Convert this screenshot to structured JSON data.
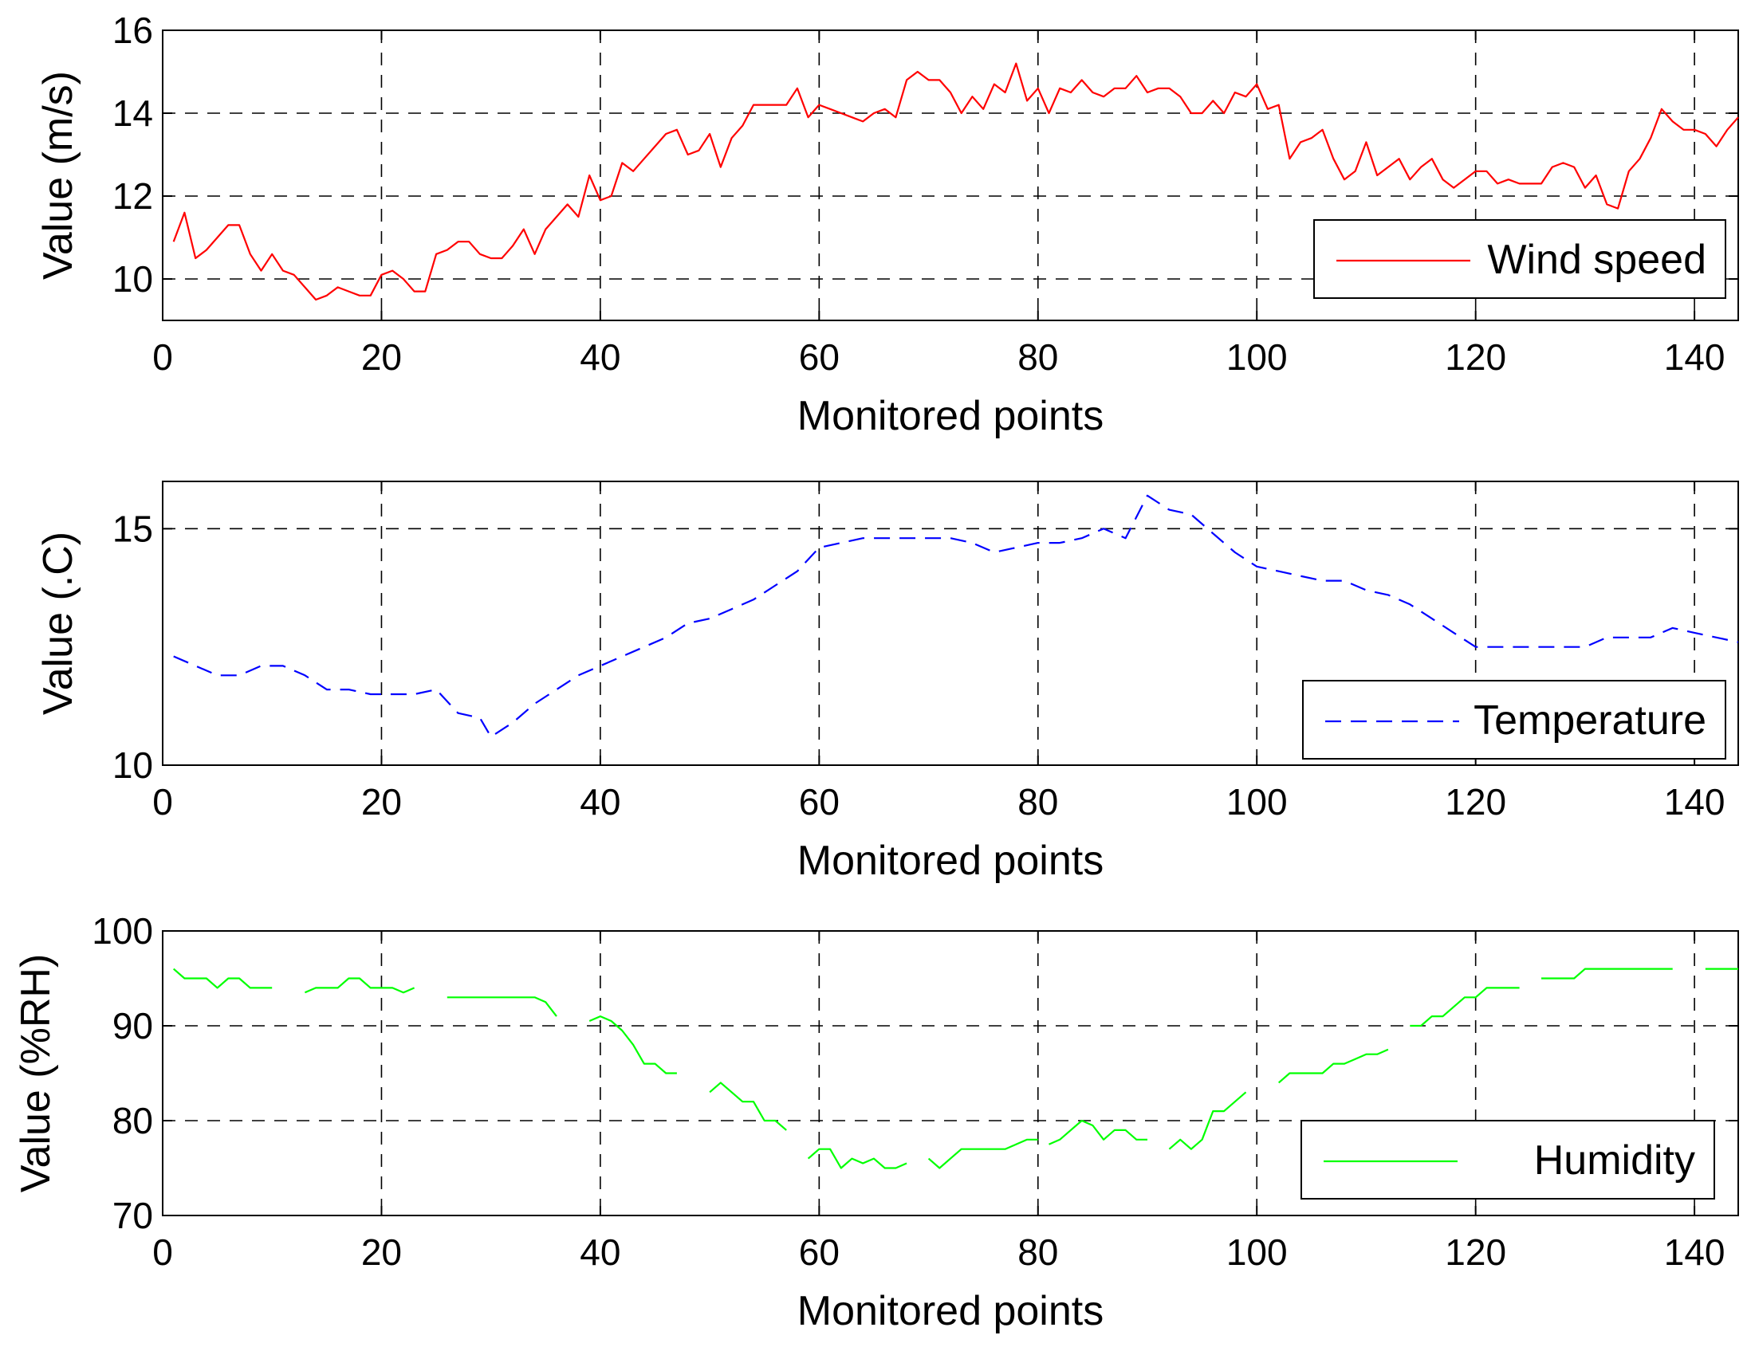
{
  "chart_data": [
    {
      "type": "line",
      "xlabel": "Monitored points",
      "ylabel": "Value (m/s)",
      "xlim": [
        0,
        144
      ],
      "ylim": [
        9,
        16
      ],
      "xticks": [
        0,
        20,
        40,
        60,
        80,
        100,
        120,
        140
      ],
      "yticks": [
        10,
        12,
        14,
        16
      ],
      "grid": true,
      "legend": "right",
      "series": [
        {
          "name": "Wind speed",
          "color": "#ff0000",
          "style": "solid",
          "x": [
            1,
            2,
            3,
            4,
            5,
            6,
            7,
            8,
            9,
            10,
            11,
            12,
            13,
            14,
            15,
            16,
            17,
            18,
            19,
            20,
            21,
            22,
            23,
            24,
            25,
            26,
            27,
            28,
            29,
            30,
            31,
            32,
            33,
            34,
            35,
            36,
            37,
            38,
            39,
            40,
            41,
            42,
            43,
            44,
            45,
            46,
            47,
            48,
            49,
            50,
            51,
            52,
            53,
            54,
            55,
            56,
            57,
            58,
            59,
            60,
            61,
            62,
            63,
            64,
            65,
            66,
            67,
            68,
            69,
            70,
            71,
            72,
            73,
            74,
            75,
            76,
            77,
            78,
            79,
            80,
            81,
            82,
            83,
            84,
            85,
            86,
            87,
            88,
            89,
            90,
            91,
            92,
            93,
            94,
            95,
            96,
            97,
            98,
            99,
            100,
            101,
            102,
            103,
            104,
            105,
            106,
            107,
            108,
            109,
            110,
            111,
            112,
            113,
            114,
            115,
            116,
            117,
            118,
            119,
            120,
            121,
            122,
            123,
            124,
            125,
            126,
            127,
            128,
            129,
            130,
            131,
            132,
            133,
            134,
            135,
            136,
            137,
            138,
            139,
            140,
            141,
            142,
            143,
            144
          ],
          "y": [
            10.9,
            11.6,
            10.5,
            10.7,
            11.0,
            11.3,
            11.3,
            10.6,
            10.2,
            10.6,
            10.2,
            10.1,
            9.8,
            9.5,
            9.6,
            9.8,
            9.7,
            9.6,
            9.6,
            10.1,
            10.2,
            10.0,
            9.7,
            9.7,
            10.6,
            10.7,
            10.9,
            10.9,
            10.6,
            10.5,
            10.5,
            10.8,
            11.2,
            10.6,
            11.2,
            11.5,
            11.8,
            11.5,
            12.5,
            11.9,
            12.0,
            12.8,
            12.6,
            12.9,
            13.2,
            13.5,
            13.6,
            13.0,
            13.1,
            13.5,
            12.7,
            13.4,
            13.7,
            14.2,
            14.2,
            14.2,
            14.2,
            14.6,
            13.9,
            14.2,
            14.1,
            14.0,
            13.9,
            13.8,
            14.0,
            14.1,
            13.9,
            14.8,
            15.0,
            14.8,
            14.8,
            14.5,
            14.0,
            14.4,
            14.1,
            14.7,
            14.5,
            15.2,
            14.3,
            14.6,
            14.0,
            14.6,
            14.5,
            14.8,
            14.5,
            14.4,
            14.6,
            14.6,
            14.9,
            14.5,
            14.6,
            14.6,
            14.4,
            14.0,
            14.0,
            14.3,
            14.0,
            14.5,
            14.4,
            14.7,
            14.1,
            14.2,
            12.9,
            13.3,
            13.4,
            13.6,
            12.9,
            12.4,
            12.6,
            13.3,
            12.5,
            12.7,
            12.9,
            12.4,
            12.7,
            12.9,
            12.4,
            12.2,
            12.4,
            12.6,
            12.6,
            12.3,
            12.4,
            12.3,
            12.3,
            12.3,
            12.7,
            12.8,
            12.7,
            12.2,
            12.5,
            11.8,
            11.7,
            12.6,
            12.9,
            13.4,
            14.1,
            13.8,
            13.6,
            13.6,
            13.5,
            13.2,
            13.6,
            13.9
          ]
        }
      ]
    },
    {
      "type": "line",
      "xlabel": "Monitored points",
      "ylabel": "Value (.C)",
      "xlim": [
        0,
        144
      ],
      "ylim": [
        10,
        16
      ],
      "xticks": [
        0,
        20,
        40,
        60,
        80,
        100,
        120,
        140
      ],
      "yticks": [
        10,
        15
      ],
      "grid": true,
      "legend": "right",
      "series": [
        {
          "name": "Temperature",
          "color": "#0000ff",
          "style": "dashed",
          "x": [
            1,
            3,
            5,
            7,
            9,
            11,
            13,
            15,
            17,
            19,
            21,
            23,
            25,
            27,
            29,
            30,
            32,
            34,
            36,
            38,
            40,
            42,
            44,
            46,
            48,
            50,
            52,
            54,
            56,
            58,
            60,
            62,
            64,
            66,
            68,
            70,
            72,
            74,
            76,
            78,
            80,
            82,
            84,
            86,
            88,
            90,
            92,
            94,
            96,
            98,
            100,
            102,
            104,
            106,
            108,
            110,
            112,
            114,
            116,
            118,
            120,
            122,
            124,
            126,
            128,
            130,
            132,
            134,
            136,
            138,
            140,
            142,
            144
          ],
          "y": [
            12.3,
            12.1,
            11.9,
            11.9,
            12.1,
            12.1,
            11.9,
            11.6,
            11.6,
            11.5,
            11.5,
            11.5,
            11.6,
            11.1,
            11.0,
            10.6,
            10.9,
            11.3,
            11.6,
            11.9,
            12.1,
            12.3,
            12.5,
            12.7,
            13.0,
            13.1,
            13.3,
            13.5,
            13.8,
            14.1,
            14.6,
            14.7,
            14.8,
            14.8,
            14.8,
            14.8,
            14.8,
            14.7,
            14.5,
            14.6,
            14.7,
            14.7,
            14.8,
            15.0,
            14.8,
            15.7,
            15.4,
            15.3,
            14.9,
            14.5,
            14.2,
            14.1,
            14.0,
            13.9,
            13.9,
            13.7,
            13.6,
            13.4,
            13.1,
            12.8,
            12.5,
            12.5,
            12.5,
            12.5,
            12.5,
            12.5,
            12.7,
            12.7,
            12.7,
            12.9,
            12.8,
            12.7,
            12.6
          ]
        }
      ]
    },
    {
      "type": "line",
      "xlabel": "Monitored points",
      "ylabel": "Value (%RH)",
      "xlim": [
        0,
        144
      ],
      "ylim": [
        70,
        100
      ],
      "xticks": [
        0,
        20,
        40,
        60,
        80,
        100,
        120,
        140
      ],
      "yticks": [
        70,
        80,
        90,
        100
      ],
      "grid": true,
      "legend": "right",
      "series": [
        {
          "name": "Humidity",
          "color": "#00ff00",
          "style": "broken",
          "segments": [
            {
              "x": [
                1,
                2,
                3,
                4,
                5,
                6,
                7,
                8,
                9,
                10
              ],
              "y": [
                96,
                95,
                95,
                95,
                94,
                95,
                95,
                94,
                94,
                94
              ]
            },
            {
              "x": [
                13,
                14,
                15,
                16,
                17,
                18,
                19,
                20,
                21,
                22,
                23
              ],
              "y": [
                93.5,
                94,
                94,
                94,
                95,
                95,
                94,
                94,
                94,
                93.5,
                94
              ]
            },
            {
              "x": [
                26,
                27,
                28,
                29,
                30,
                31,
                32,
                33,
                34,
                35,
                36
              ],
              "y": [
                93,
                93,
                93,
                93,
                93,
                93,
                93,
                93,
                93,
                92.5,
                91
              ]
            },
            {
              "x": [
                39,
                40,
                41,
                42,
                43,
                44,
                45,
                46,
                47
              ],
              "y": [
                90.5,
                91,
                90.5,
                89.5,
                88,
                86,
                86,
                85,
                85
              ]
            },
            {
              "x": [
                50,
                51,
                52,
                53,
                54,
                55,
                56,
                57
              ],
              "y": [
                83,
                84,
                83,
                82,
                82,
                80,
                80,
                79
              ]
            },
            {
              "x": [
                59,
                60,
                61,
                62,
                63,
                64,
                65,
                66,
                67,
                68
              ],
              "y": [
                76,
                77,
                77,
                75,
                76,
                75.5,
                76,
                75,
                75,
                75.5
              ]
            },
            {
              "x": [
                70,
                71,
                72,
                73,
                74,
                75,
                76,
                77,
                78,
                79,
                80
              ],
              "y": [
                76,
                75,
                76,
                77,
                77,
                77,
                77,
                77,
                77.5,
                78,
                78
              ]
            },
            {
              "x": [
                81,
                82,
                83,
                84,
                85,
                86,
                87,
                88,
                89,
                90
              ],
              "y": [
                77.5,
                78,
                79,
                80,
                79.5,
                78,
                79,
                79,
                78,
                78
              ]
            },
            {
              "x": [
                92,
                93,
                94,
                95,
                96,
                97,
                98,
                99
              ],
              "y": [
                77,
                78,
                77,
                78,
                81,
                81,
                82,
                83
              ]
            },
            {
              "x": [
                102,
                103,
                104,
                105,
                106,
                107,
                108,
                109,
                110,
                111,
                112
              ],
              "y": [
                84,
                85,
                85,
                85,
                85,
                86,
                86,
                86.5,
                87,
                87,
                87.5
              ]
            },
            {
              "x": [
                114,
                115,
                116,
                117,
                118,
                119,
                120,
                121,
                122,
                123,
                124
              ],
              "y": [
                90,
                90,
                91,
                91,
                92,
                93,
                93,
                94,
                94,
                94,
                94
              ]
            },
            {
              "x": [
                126,
                127,
                128,
                129,
                130,
                131,
                132,
                133,
                134,
                135,
                136,
                137,
                138
              ],
              "y": [
                95,
                95,
                95,
                95,
                96,
                96,
                96,
                96,
                96,
                96,
                96,
                96,
                96
              ]
            },
            {
              "x": [
                141,
                142,
                143,
                144
              ],
              "y": [
                96,
                96,
                96,
                96
              ]
            }
          ]
        }
      ]
    }
  ]
}
